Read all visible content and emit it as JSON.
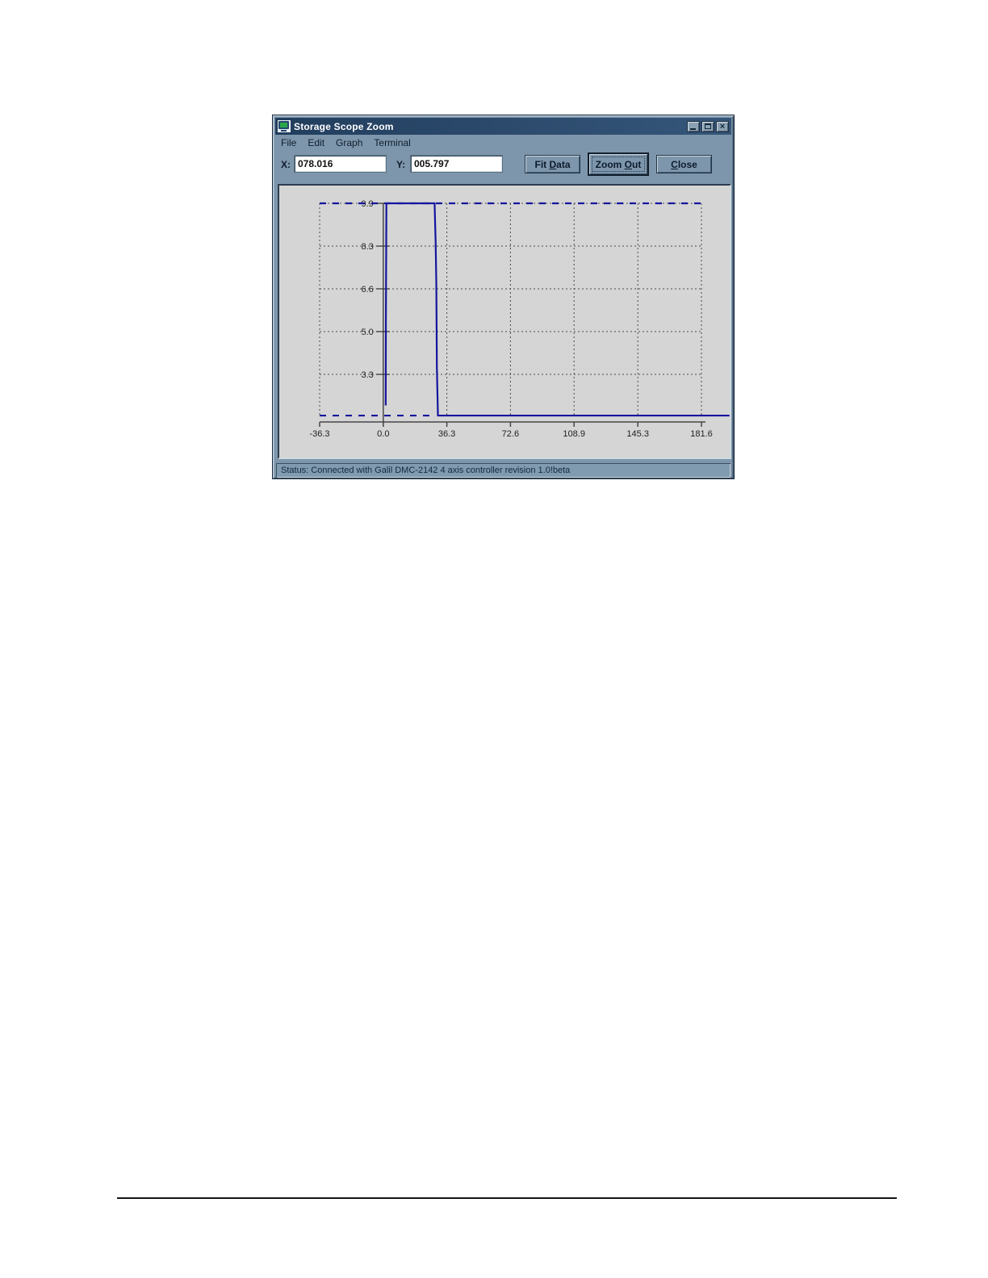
{
  "window": {
    "title": "Storage Scope Zoom",
    "icons": {
      "app": "scope-monitor-icon",
      "minimize": "minimize-icon",
      "maximize": "maximize-icon",
      "close": "close-icon"
    },
    "close_glyph": "×",
    "menu": {
      "items": [
        "File",
        "Edit",
        "Graph",
        "Terminal"
      ]
    },
    "toolbar": {
      "x_label": "X:",
      "x_value": "078.016",
      "y_label": "Y:",
      "y_value": "005.797",
      "buttons": [
        {
          "name": "fit-data",
          "pre": "Fit ",
          "mnemonic": "D",
          "post": "ata"
        },
        {
          "name": "zoom-out",
          "pre": "Zoom ",
          "mnemonic": "O",
          "post": "ut"
        },
        {
          "name": "close",
          "pre": "",
          "mnemonic": "C",
          "post": "lose"
        }
      ]
    },
    "status": "Status: Connected with Galil DMC-2142 4 axis controller revision 1.0!beta"
  },
  "chart_data": {
    "type": "line",
    "title": "",
    "xlabel": "",
    "ylabel": "",
    "grid": true,
    "x_ticks": [
      -36.3,
      0.0,
      36.3,
      72.6,
      108.9,
      145.3,
      181.6
    ],
    "x_tick_labels": [
      "-36.3",
      "0.0",
      "36.3",
      "72.6",
      "108.9",
      "145.3",
      "181.6"
    ],
    "x_gridlines": [
      -36.3,
      36.3,
      72.6,
      108.9,
      145.3,
      181.6
    ],
    "x_grid_range": [
      -36.3,
      181.6
    ],
    "y_gridline_values": [
      9.9,
      8.25,
      6.6,
      4.95,
      3.3
    ],
    "y_tick_labels": [
      "9.9",
      "8.3",
      "6.6",
      "5.0",
      "3.3"
    ],
    "y_anchor_top": 9.9,
    "y_anchor_bottom": 3.3,
    "axis_x_position": 0.0,
    "trace_color": "#15159f",
    "grid_color": "#4a4a4a",
    "axis_color": "#474747",
    "series": [
      {
        "name": "scope-trace-solid",
        "style": "solid",
        "points": [
          [
            1.4,
            2.1
          ],
          [
            1.5,
            5.3
          ],
          [
            1.8,
            9.9
          ],
          [
            29.3,
            9.9
          ],
          [
            29.9,
            8.4
          ],
          [
            30.3,
            6.7
          ],
          [
            30.6,
            3.6
          ],
          [
            31.2,
            1.71
          ],
          [
            197.6,
            1.71
          ]
        ]
      },
      {
        "name": "scope-trace-dashed-top",
        "style": "dashed",
        "points": [
          [
            -36.3,
            9.9
          ],
          [
            181.6,
            9.9
          ]
        ]
      },
      {
        "name": "scope-trace-dashed-bottom",
        "style": "dashed",
        "points": [
          [
            -36.3,
            1.71
          ],
          [
            29.8,
            1.71
          ]
        ]
      }
    ]
  }
}
